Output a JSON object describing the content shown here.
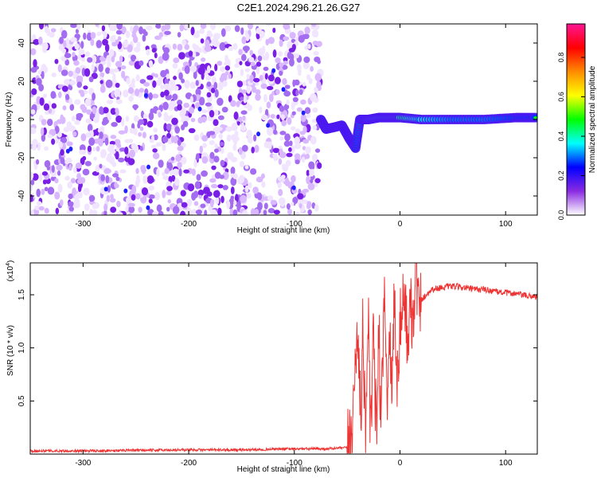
{
  "title": "C2E1.2024.296.21.26.G27",
  "chart_data": [
    {
      "type": "heatmap",
      "xlabel": "Height of straight line (km)",
      "ylabel": "Frequency (Hz)",
      "xlim": [
        -350,
        130
      ],
      "ylim": [
        -50,
        50
      ],
      "xticks": [
        -300,
        -200,
        -100,
        0,
        100
      ],
      "yticks": [
        -40,
        -20,
        0,
        20,
        40
      ],
      "colorbar": {
        "label": "Normalized spectral amplitude",
        "range": [
          0.0,
          0.97
        ],
        "ticks": [
          0.0,
          0.2,
          0.4,
          0.6,
          0.8
        ],
        "colormap": [
          "#ffffff",
          "#8a2be2",
          "#0000ff",
          "#00ffff",
          "#00ff00",
          "#ffff00",
          "#ff8c00",
          "#ff0000",
          "#ff1493"
        ]
      },
      "noise_region_x": [
        -350,
        -75
      ],
      "signal_track": [
        {
          "x": -75,
          "y": 0,
          "v": 0.45
        },
        {
          "x": -70,
          "y": -5,
          "v": 0.6
        },
        {
          "x": -62,
          "y": -4,
          "v": 0.55
        },
        {
          "x": -55,
          "y": -3,
          "v": 0.5
        },
        {
          "x": -48,
          "y": -10,
          "v": 0.4
        },
        {
          "x": -42,
          "y": -15,
          "v": 0.5
        },
        {
          "x": -38,
          "y": 0,
          "v": 0.55
        },
        {
          "x": -30,
          "y": 0,
          "v": 0.65
        },
        {
          "x": -20,
          "y": 1,
          "v": 0.7
        },
        {
          "x": -10,
          "y": 1,
          "v": 0.75
        },
        {
          "x": 0,
          "y": 1,
          "v": 0.8
        },
        {
          "x": 20,
          "y": 0,
          "v": 0.65
        },
        {
          "x": 50,
          "y": 0,
          "v": 0.55
        },
        {
          "x": 80,
          "y": 0,
          "v": 0.55
        },
        {
          "x": 110,
          "y": 1,
          "v": 0.5
        },
        {
          "x": 130,
          "y": 1,
          "v": 0.5
        }
      ]
    },
    {
      "type": "line",
      "xlabel": "Height of straight line (km)",
      "ylabel": "SNR (10 * v/v)",
      "yscale_label": "(x10",
      "yscale_exp": "4",
      "yscale_suffix": ")",
      "xlim": [
        -350,
        130
      ],
      "ylim": [
        0,
        1.8
      ],
      "xticks": [
        -300,
        -200,
        -100,
        0,
        100
      ],
      "yticks": [
        0.5,
        1.0,
        1.5
      ],
      "ytick_labels": [
        "0.5",
        "1.0",
        "1.5"
      ],
      "series": [
        {
          "color": "#ee3333",
          "x": [
            -350,
            -300,
            -250,
            -200,
            -150,
            -100,
            -70,
            -50,
            -45,
            -40,
            -37,
            -35,
            -33,
            -30,
            -28,
            -25,
            -22,
            -20,
            -18,
            -15,
            -12,
            -10,
            -8,
            -5,
            -3,
            0,
            3,
            5,
            8,
            10,
            12,
            15,
            18,
            20,
            25,
            30,
            40,
            50,
            60,
            70,
            80,
            90,
            100,
            110,
            120,
            130
          ],
          "y": [
            0.03,
            0.03,
            0.035,
            0.04,
            0.04,
            0.05,
            0.05,
            0.06,
            0.25,
            1.3,
            0.2,
            1.4,
            0.1,
            1.35,
            0.05,
            1.1,
            0.1,
            1.2,
            0.3,
            1.5,
            0.5,
            1.3,
            0.6,
            1.6,
            0.5,
            1.2,
            1.4,
            1.5,
            0.9,
            1.55,
            1.2,
            1.8,
            1.3,
            1.45,
            1.5,
            1.55,
            1.57,
            1.58,
            1.57,
            1.55,
            1.55,
            1.53,
            1.52,
            1.51,
            1.49,
            1.48
          ]
        }
      ]
    }
  ]
}
